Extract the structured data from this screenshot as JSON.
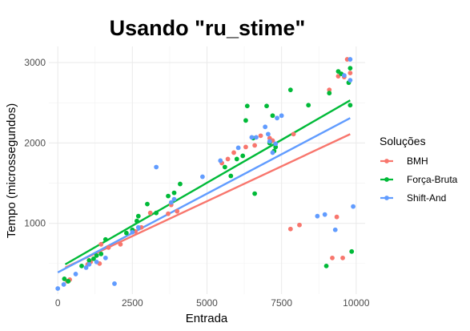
{
  "chart_data": {
    "type": "scatter",
    "title": "Usando \"ru_stime\"",
    "xlabel": "Entrada",
    "ylabel": "Tempo (microssegundos)",
    "xlim": [
      -300,
      10300
    ],
    "ylim": [
      120,
      3200
    ],
    "xticks": [
      0,
      2500,
      5000,
      7500,
      10000
    ],
    "yticks": [
      1000,
      2000,
      3000
    ],
    "grid": true,
    "legend": {
      "title": "Soluções",
      "position": "right"
    },
    "series": [
      {
        "name": "BMH",
        "color": "#F8766D",
        "points": [
          [
            320,
            280
          ],
          [
            400,
            300
          ],
          [
            1000,
            490
          ],
          [
            1100,
            520
          ],
          [
            1400,
            500
          ],
          [
            1450,
            740
          ],
          [
            1700,
            700
          ],
          [
            2100,
            740
          ],
          [
            2600,
            900
          ],
          [
            2800,
            950
          ],
          [
            3100,
            1130
          ],
          [
            3700,
            1120
          ],
          [
            3800,
            1230
          ],
          [
            4000,
            1150
          ],
          [
            5500,
            1750
          ],
          [
            5700,
            1800
          ],
          [
            5900,
            1880
          ],
          [
            6300,
            1950
          ],
          [
            6600,
            1970
          ],
          [
            6800,
            2090
          ],
          [
            7100,
            2060
          ],
          [
            7200,
            2030
          ],
          [
            7900,
            2110
          ],
          [
            7800,
            930
          ],
          [
            8100,
            980
          ],
          [
            9100,
            2660
          ],
          [
            9350,
            1080
          ],
          [
            9400,
            2830
          ],
          [
            9600,
            2820
          ],
          [
            9700,
            3040
          ],
          [
            9800,
            2870
          ],
          [
            9200,
            570
          ],
          [
            9550,
            570
          ]
        ],
        "trend": [
          [
            250,
            450
          ],
          [
            9800,
            2110
          ]
        ]
      },
      {
        "name": "Força-Bruta",
        "color": "#00BA38",
        "points": [
          [
            220,
            310
          ],
          [
            350,
            280
          ],
          [
            800,
            470
          ],
          [
            1050,
            540
          ],
          [
            1200,
            560
          ],
          [
            1300,
            600
          ],
          [
            1450,
            620
          ],
          [
            1600,
            800
          ],
          [
            2300,
            880
          ],
          [
            2500,
            920
          ],
          [
            2650,
            1030
          ],
          [
            2700,
            1090
          ],
          [
            3000,
            1240
          ],
          [
            3300,
            1130
          ],
          [
            3700,
            1340
          ],
          [
            3900,
            1380
          ],
          [
            4100,
            1490
          ],
          [
            5600,
            1700
          ],
          [
            5800,
            1590
          ],
          [
            6000,
            1800
          ],
          [
            6200,
            1840
          ],
          [
            6300,
            2280
          ],
          [
            6350,
            2460
          ],
          [
            6550,
            2060
          ],
          [
            6600,
            1370
          ],
          [
            7000,
            2460
          ],
          [
            7100,
            2000
          ],
          [
            7200,
            2340
          ],
          [
            7250,
            1900
          ],
          [
            7300,
            1950
          ],
          [
            7800,
            2660
          ],
          [
            8400,
            2470
          ],
          [
            9100,
            2620
          ],
          [
            9400,
            2890
          ],
          [
            9500,
            2860
          ],
          [
            9750,
            2750
          ],
          [
            9800,
            2930
          ],
          [
            9800,
            2470
          ],
          [
            9850,
            650
          ],
          [
            9000,
            470
          ]
        ],
        "trend": [
          [
            250,
            490
          ],
          [
            9800,
            2530
          ]
        ]
      },
      {
        "name": "Shift-And",
        "color": "#619CFF",
        "points": [
          [
            0,
            190
          ],
          [
            200,
            240
          ],
          [
            600,
            370
          ],
          [
            950,
            450
          ],
          [
            1050,
            490
          ],
          [
            1300,
            520
          ],
          [
            1600,
            570
          ],
          [
            1900,
            250
          ],
          [
            2500,
            890
          ],
          [
            2700,
            950
          ],
          [
            3300,
            1700
          ],
          [
            3800,
            1260
          ],
          [
            3900,
            1300
          ],
          [
            4850,
            1580
          ],
          [
            5450,
            1780
          ],
          [
            6050,
            1940
          ],
          [
            6500,
            2070
          ],
          [
            6650,
            2070
          ],
          [
            6950,
            2200
          ],
          [
            7050,
            2110
          ],
          [
            7100,
            2020
          ],
          [
            7200,
            1880
          ],
          [
            7300,
            1990
          ],
          [
            7350,
            2310
          ],
          [
            7500,
            2340
          ],
          [
            8700,
            1090
          ],
          [
            8950,
            1110
          ],
          [
            9300,
            920
          ],
          [
            9600,
            2840
          ],
          [
            9800,
            3040
          ],
          [
            9800,
            2780
          ],
          [
            9900,
            1210
          ]
        ],
        "trend": [
          [
            0,
            390
          ],
          [
            9800,
            2310
          ]
        ]
      }
    ]
  }
}
